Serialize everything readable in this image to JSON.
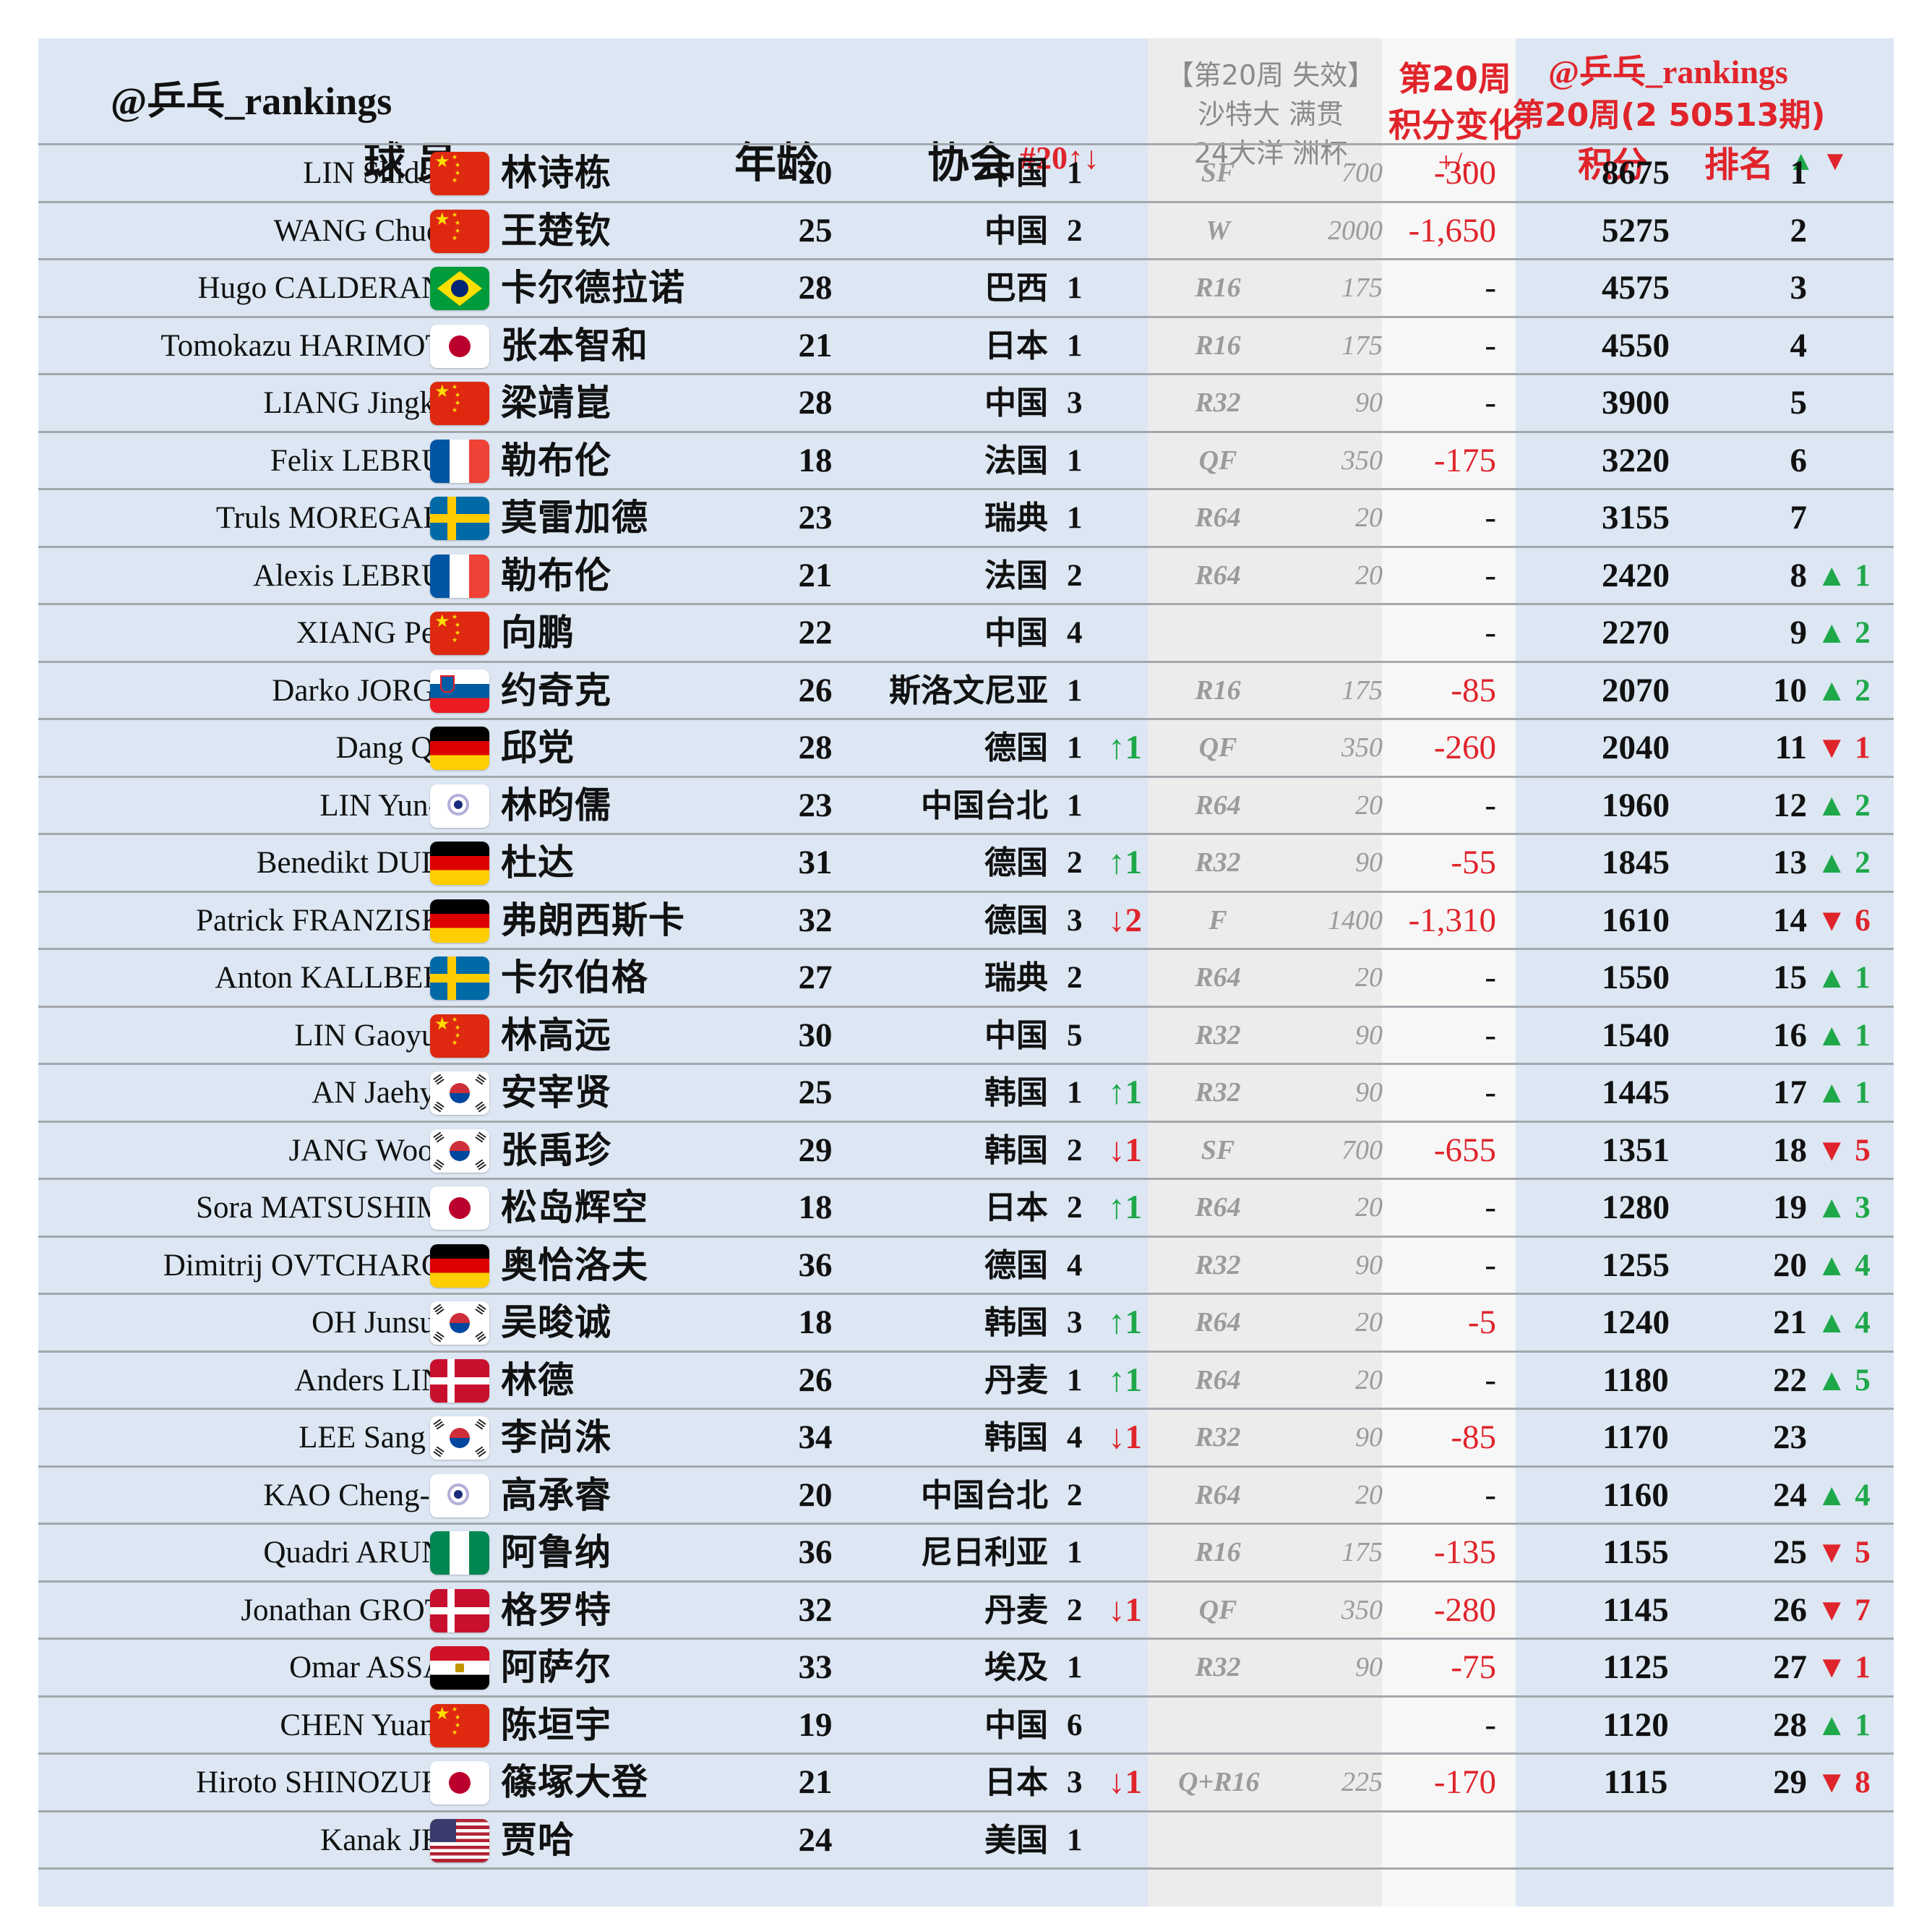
{
  "header": {
    "handle": "@乒乓_rankings",
    "col_player": "球员",
    "col_age": "年龄",
    "col_assoc": "协会",
    "col_assoc_rank": "#20↑↓",
    "expire_line1": "【第20周 失效】",
    "expire_line2": "沙特大 满贯",
    "expire_line3": "24大洋 洲杯",
    "change_line1": "第20周",
    "change_line2": "积分变化",
    "change_line3": "+/-",
    "right_handle": "@乒乓_rankings",
    "right_period": "第20周(2 50513期)",
    "col_points": "积分",
    "col_rank": "排名",
    "col_rank_arrows": "▲ ▼"
  },
  "flag_colors": {
    "china_red": "#de2910",
    "brazil_green": "#009b3a",
    "france_blue": "#0055a4",
    "sweden_blue": "#006aa7",
    "germany_gold": "#ffce00",
    "denmark_red": "#c8102e",
    "nigeria_green": "#008751",
    "egypt_red": "#ce1126"
  },
  "rows": [
    {
      "en": "LIN Shidong",
      "flag": "china-flag-icon",
      "cn": "林诗栋",
      "age": "20",
      "assoc": "中国",
      "arank": "1",
      "amove": "",
      "adir": "",
      "round": "SF",
      "rpts": "700",
      "chg": "-300",
      "pts": "8675",
      "rank": "1",
      "mv": "",
      "dir": ""
    },
    {
      "en": "WANG Chuqin",
      "flag": "china-flag-icon",
      "cn": "王楚钦",
      "age": "25",
      "assoc": "中国",
      "arank": "2",
      "amove": "",
      "adir": "",
      "round": "W",
      "rpts": "2000",
      "chg": "-1,650",
      "pts": "5275",
      "rank": "2",
      "mv": "",
      "dir": ""
    },
    {
      "en": "Hugo CALDERANO",
      "flag": "brazil-flag-icon",
      "cn": "卡尔德拉诺",
      "age": "28",
      "assoc": "巴西",
      "arank": "1",
      "amove": "",
      "adir": "",
      "round": "R16",
      "rpts": "175",
      "chg": "-",
      "pts": "4575",
      "rank": "3",
      "mv": "",
      "dir": ""
    },
    {
      "en": "Tomokazu HARIMOTO",
      "flag": "japan-flag-icon",
      "cn": "张本智和",
      "age": "21",
      "assoc": "日本",
      "arank": "1",
      "amove": "",
      "adir": "",
      "round": "R16",
      "rpts": "175",
      "chg": "-",
      "pts": "4550",
      "rank": "4",
      "mv": "",
      "dir": ""
    },
    {
      "en": "LIANG Jingkun",
      "flag": "china-flag-icon",
      "cn": "梁靖崑",
      "age": "28",
      "assoc": "中国",
      "arank": "3",
      "amove": "",
      "adir": "",
      "round": "R32",
      "rpts": "90",
      "chg": "-",
      "pts": "3900",
      "rank": "5",
      "mv": "",
      "dir": ""
    },
    {
      "en": "Felix LEBRUN",
      "flag": "france-flag-icon",
      "cn": "勒布伦",
      "age": "18",
      "assoc": "法国",
      "arank": "1",
      "amove": "",
      "adir": "",
      "round": "QF",
      "rpts": "350",
      "chg": "-175",
      "pts": "3220",
      "rank": "6",
      "mv": "",
      "dir": ""
    },
    {
      "en": "Truls MOREGARD",
      "flag": "sweden-flag-icon",
      "cn": "莫雷加德",
      "age": "23",
      "assoc": "瑞典",
      "arank": "1",
      "amove": "",
      "adir": "",
      "round": "R64",
      "rpts": "20",
      "chg": "-",
      "pts": "3155",
      "rank": "7",
      "mv": "",
      "dir": ""
    },
    {
      "en": "Alexis LEBRUN",
      "flag": "france-flag-icon",
      "cn": "勒布伦",
      "age": "21",
      "assoc": "法国",
      "arank": "2",
      "amove": "",
      "adir": "",
      "round": "R64",
      "rpts": "20",
      "chg": "-",
      "pts": "2420",
      "rank": "8",
      "mv": "▲ 1",
      "dir": "up"
    },
    {
      "en": "XIANG Peng",
      "flag": "china-flag-icon",
      "cn": "向鹏",
      "age": "22",
      "assoc": "中国",
      "arank": "4",
      "amove": "",
      "adir": "",
      "round": "",
      "rpts": "",
      "chg": "-",
      "pts": "2270",
      "rank": "9",
      "mv": "▲ 2",
      "dir": "up"
    },
    {
      "en": "Darko JORGIC",
      "flag": "slovenia-flag-icon",
      "cn": "约奇克",
      "age": "26",
      "assoc": "斯洛文尼亚",
      "arank": "1",
      "amove": "",
      "adir": "",
      "round": "R16",
      "rpts": "175",
      "chg": "-85",
      "pts": "2070",
      "rank": "10",
      "mv": "▲ 2",
      "dir": "up"
    },
    {
      "en": "Dang QIU",
      "flag": "germany-flag-icon",
      "cn": "邱党",
      "age": "28",
      "assoc": "德国",
      "arank": "1",
      "amove": "↑1",
      "adir": "up",
      "round": "QF",
      "rpts": "350",
      "chg": "-260",
      "pts": "2040",
      "rank": "11",
      "mv": "▼ 1",
      "dir": "down"
    },
    {
      "en": "LIN Yun-Ju",
      "flag": "chinese-taipei-flag-icon",
      "cn": "林昀儒",
      "age": "23",
      "assoc": "中国台北",
      "arank": "1",
      "amove": "",
      "adir": "",
      "round": "R64",
      "rpts": "20",
      "chg": "-",
      "pts": "1960",
      "rank": "12",
      "mv": "▲ 2",
      "dir": "up"
    },
    {
      "en": "Benedikt DUDA",
      "flag": "germany-flag-icon",
      "cn": "杜达",
      "age": "31",
      "assoc": "德国",
      "arank": "2",
      "amove": "↑1",
      "adir": "up",
      "round": "R32",
      "rpts": "90",
      "chg": "-55",
      "pts": "1845",
      "rank": "13",
      "mv": "▲ 2",
      "dir": "up"
    },
    {
      "en": "Patrick FRANZISKA",
      "flag": "germany-flag-icon",
      "cn": "弗朗西斯卡",
      "age": "32",
      "assoc": "德国",
      "arank": "3",
      "amove": "↓2",
      "adir": "down",
      "round": "F",
      "rpts": "1400",
      "chg": "-1,310",
      "pts": "1610",
      "rank": "14",
      "mv": "▼ 6",
      "dir": "down"
    },
    {
      "en": "Anton KALLBERG",
      "flag": "sweden-flag-icon",
      "cn": "卡尔伯格",
      "age": "27",
      "assoc": "瑞典",
      "arank": "2",
      "amove": "",
      "adir": "",
      "round": "R64",
      "rpts": "20",
      "chg": "-",
      "pts": "1550",
      "rank": "15",
      "mv": "▲ 1",
      "dir": "up"
    },
    {
      "en": "LIN Gaoyuan",
      "flag": "china-flag-icon",
      "cn": "林高远",
      "age": "30",
      "assoc": "中国",
      "arank": "5",
      "amove": "",
      "adir": "",
      "round": "R32",
      "rpts": "90",
      "chg": "-",
      "pts": "1540",
      "rank": "16",
      "mv": "▲ 1",
      "dir": "up"
    },
    {
      "en": "AN Jaehyun",
      "flag": "korea-flag-icon",
      "cn": "安宰贤",
      "age": "25",
      "assoc": "韩国",
      "arank": "1",
      "amove": "↑1",
      "adir": "up",
      "round": "R32",
      "rpts": "90",
      "chg": "-",
      "pts": "1445",
      "rank": "17",
      "mv": "▲ 1",
      "dir": "up"
    },
    {
      "en": "JANG Woojin",
      "flag": "korea-flag-icon",
      "cn": "张禹珍",
      "age": "29",
      "assoc": "韩国",
      "arank": "2",
      "amove": "↓1",
      "adir": "down",
      "round": "SF",
      "rpts": "700",
      "chg": "-655",
      "pts": "1351",
      "rank": "18",
      "mv": "▼ 5",
      "dir": "down"
    },
    {
      "en": "Sora MATSUSHIMA",
      "flag": "japan-flag-icon",
      "cn": "松岛辉空",
      "age": "18",
      "assoc": "日本",
      "arank": "2",
      "amove": "↑1",
      "adir": "up",
      "round": "R64",
      "rpts": "20",
      "chg": "-",
      "pts": "1280",
      "rank": "19",
      "mv": "▲ 3",
      "dir": "up"
    },
    {
      "en": "Dimitrij OVTCHAROV",
      "flag": "germany-flag-icon",
      "cn": "奥恰洛夫",
      "age": "36",
      "assoc": "德国",
      "arank": "4",
      "amove": "",
      "adir": "",
      "round": "R32",
      "rpts": "90",
      "chg": "-",
      "pts": "1255",
      "rank": "20",
      "mv": "▲ 4",
      "dir": "up"
    },
    {
      "en": "OH Junsung",
      "flag": "korea-flag-icon",
      "cn": "吴晙诚",
      "age": "18",
      "assoc": "韩国",
      "arank": "3",
      "amove": "↑1",
      "adir": "up",
      "round": "R64",
      "rpts": "20",
      "chg": "-5",
      "pts": "1240",
      "rank": "21",
      "mv": "▲ 4",
      "dir": "up"
    },
    {
      "en": "Anders LIND",
      "flag": "denmark-flag-icon",
      "cn": "林德",
      "age": "26",
      "assoc": "丹麦",
      "arank": "1",
      "amove": "↑1",
      "adir": "up",
      "round": "R64",
      "rpts": "20",
      "chg": "-",
      "pts": "1180",
      "rank": "22",
      "mv": "▲ 5",
      "dir": "up"
    },
    {
      "en": "LEE Sang Su",
      "flag": "korea-flag-icon",
      "cn": "李尚洙",
      "age": "34",
      "assoc": "韩国",
      "arank": "4",
      "amove": "↓1",
      "adir": "down",
      "round": "R32",
      "rpts": "90",
      "chg": "-85",
      "pts": "1170",
      "rank": "23",
      "mv": "",
      "dir": ""
    },
    {
      "en": "KAO Cheng-Jui",
      "flag": "chinese-taipei-flag-icon",
      "cn": "高承睿",
      "age": "20",
      "assoc": "中国台北",
      "arank": "2",
      "amove": "",
      "adir": "",
      "round": "R64",
      "rpts": "20",
      "chg": "-",
      "pts": "1160",
      "rank": "24",
      "mv": "▲ 4",
      "dir": "up"
    },
    {
      "en": "Quadri ARUNA",
      "flag": "nigeria-flag-icon",
      "cn": "阿鲁纳",
      "age": "36",
      "assoc": "尼日利亚",
      "arank": "1",
      "amove": "",
      "adir": "",
      "round": "R16",
      "rpts": "175",
      "chg": "-135",
      "pts": "1155",
      "rank": "25",
      "mv": "▼ 5",
      "dir": "down"
    },
    {
      "en": "Jonathan GROTH",
      "flag": "denmark-flag-icon",
      "cn": "格罗特",
      "age": "32",
      "assoc": "丹麦",
      "arank": "2",
      "amove": "↓1",
      "adir": "down",
      "round": "QF",
      "rpts": "350",
      "chg": "-280",
      "pts": "1145",
      "rank": "26",
      "mv": "▼ 7",
      "dir": "down"
    },
    {
      "en": "Omar ASSAR",
      "flag": "egypt-flag-icon",
      "cn": "阿萨尔",
      "age": "33",
      "assoc": "埃及",
      "arank": "1",
      "amove": "",
      "adir": "",
      "round": "R32",
      "rpts": "90",
      "chg": "-75",
      "pts": "1125",
      "rank": "27",
      "mv": "▼ 1",
      "dir": "down"
    },
    {
      "en": "CHEN Yuanyu",
      "flag": "china-flag-icon",
      "cn": "陈垣宇",
      "age": "19",
      "assoc": "中国",
      "arank": "6",
      "amove": "",
      "adir": "",
      "round": "",
      "rpts": "",
      "chg": "-",
      "pts": "1120",
      "rank": "28",
      "mv": "▲ 1",
      "dir": "up"
    },
    {
      "en": "Hiroto SHINOZUKA",
      "flag": "japan-flag-icon",
      "cn": "篠塚大登",
      "age": "21",
      "assoc": "日本",
      "arank": "3",
      "amove": "↓1",
      "adir": "down",
      "round": "Q+R16",
      "rpts": "225",
      "chg": "-170",
      "pts": "1115",
      "rank": "29",
      "mv": "▼ 8",
      "dir": "down"
    },
    {
      "en": "Kanak JHA",
      "flag": "usa-flag-icon",
      "cn": "贾哈",
      "age": "24",
      "assoc": "美国",
      "arank": "1",
      "amove": "",
      "adir": "",
      "round": "",
      "rpts": "",
      "chg": "",
      "pts": "",
      "rank": "",
      "mv": "",
      "dir": ""
    }
  ]
}
